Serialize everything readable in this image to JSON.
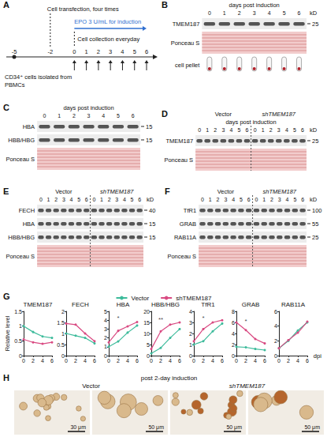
{
  "figure": {
    "panels": [
      {
        "letter": "A",
        "timeline": [
          -5,
          -2,
          0,
          1,
          2,
          3,
          4,
          5,
          6
        ],
        "isolation": "CD34⁺ cells isolated from PBMCs",
        "transfection": "Cell transfection, four times",
        "induction": "EPO 3 U/mL for induction",
        "collection": "Cell collection everyday"
      },
      {
        "letter": "B",
        "header": "days post induction",
        "unit": "kD",
        "lanes": [
          0,
          1,
          2,
          3,
          4,
          5,
          6
        ],
        "rows": [
          {
            "label": "TMEM187",
            "kd": 25,
            "kind": "band"
          },
          {
            "label": "Ponceau S",
            "kind": "ponceau"
          },
          {
            "label": "cell pellet",
            "kind": "pellet"
          }
        ]
      },
      {
        "letter": "C",
        "header": "days post induction",
        "lanes": [
          0,
          1,
          2,
          3,
          4,
          5,
          6
        ],
        "rows": [
          {
            "label": "HBA",
            "kd": 15,
            "kind": "band"
          },
          {
            "label": "HBB/HBG",
            "kd": 15,
            "kind": "band"
          },
          {
            "label": "Ponceau S",
            "kind": "ponceau"
          }
        ]
      },
      {
        "letter": "D",
        "groups": [
          "Vector",
          "shTMEM187"
        ],
        "header": "days post induction",
        "unit": "kD",
        "lanes": [
          0,
          1,
          2,
          3,
          4,
          5,
          6
        ],
        "rows": [
          {
            "label": "TMEM187",
            "kd": 25,
            "kind": "band"
          },
          {
            "label": "Ponceau S",
            "kind": "ponceau"
          }
        ]
      },
      {
        "letter": "E",
        "groups": [
          "Vector",
          "shTMEM187"
        ],
        "unit": "kD",
        "lanes": [
          0,
          1,
          2,
          3,
          4,
          5,
          6
        ],
        "rows": [
          {
            "label": "FECH",
            "kd": 40,
            "kind": "band"
          },
          {
            "label": "HBA",
            "kd": 15,
            "kind": "band"
          },
          {
            "label": "HBB/HBG",
            "kd": 15,
            "kind": "band"
          },
          {
            "label": "Ponceau S",
            "kind": "ponceau"
          }
        ]
      },
      {
        "letter": "F",
        "groups": [
          "Vector",
          "shTMEM187"
        ],
        "unit": "kD",
        "lanes": [
          0,
          1,
          2,
          3,
          4,
          5,
          6
        ],
        "rows": [
          {
            "label": "TfR1",
            "kd": 100,
            "kind": "band"
          },
          {
            "label": "GRAB",
            "kd": 55,
            "kind": "band"
          },
          {
            "label": "RAB11A",
            "kd": 25,
            "kind": "band"
          },
          {
            "label": "Ponceau S",
            "kind": "ponceau"
          }
        ]
      },
      {
        "letter": "G"
      },
      {
        "letter": "H",
        "header": "post 2-day induction",
        "groups": [
          "Vector",
          "shTMEM187"
        ],
        "scale_bars": [
          "30 μm",
          "50 μm",
          "50 μm",
          "50 μm"
        ]
      }
    ]
  },
  "chart_data": [
    {
      "type": "line",
      "title": "TMEM187",
      "ylabel": "Relative level",
      "legend": "top",
      "grid": false,
      "x": [
        0,
        2,
        4,
        6
      ],
      "xlim": [
        0,
        6
      ],
      "xticks": [
        0,
        2,
        4,
        6
      ],
      "ylim": [
        0,
        1.5
      ],
      "yticks": [
        0,
        0.5,
        1,
        1.5
      ],
      "series": [
        {
          "name": "Vector",
          "color": "#3dbb9b",
          "values": [
            1,
            0.8,
            0.65,
            0.6
          ]
        },
        {
          "name": "shTMEM187",
          "color": "#d94a82",
          "values": [
            0.55,
            0.45,
            0.4,
            0.45
          ]
        }
      ]
    },
    {
      "type": "line",
      "title": "FECH",
      "grid": false,
      "x": [
        0,
        2,
        4,
        6
      ],
      "xlim": [
        0,
        6
      ],
      "xticks": [
        0,
        2,
        4,
        6
      ],
      "ylim": [
        0,
        2
      ],
      "yticks": [
        0,
        0.5,
        1,
        1.5,
        2
      ],
      "series": [
        {
          "name": "Vector",
          "color": "#3dbb9b",
          "values": [
            1,
            0.9,
            0.8,
            0.55
          ]
        },
        {
          "name": "shTMEM187",
          "color": "#d94a82",
          "values": [
            1.45,
            1.4,
            1,
            0.65
          ]
        }
      ]
    },
    {
      "type": "line",
      "title": "HBA",
      "grid": false,
      "x": [
        0,
        2,
        4,
        6
      ],
      "xlim": [
        0,
        6
      ],
      "xticks": [
        0,
        2,
        4,
        6
      ],
      "ylim": [
        0,
        5
      ],
      "yticks": [
        0,
        1,
        2,
        3,
        4,
        5
      ],
      "series": [
        {
          "name": "Vector",
          "color": "#3dbb9b",
          "values": [
            1,
            1.6,
            2.6,
            3.4
          ]
        },
        {
          "name": "shTMEM187",
          "color": "#d94a82",
          "values": [
            1.5,
            2.8,
            3.3,
            3.8
          ]
        }
      ],
      "annotations": [
        {
          "x": 2,
          "y": 3.9,
          "text": "*"
        }
      ]
    },
    {
      "type": "line",
      "title": "HBB/HBG",
      "grid": false,
      "x": [
        0,
        2,
        4,
        6
      ],
      "xlim": [
        0,
        6
      ],
      "xticks": [
        0,
        2,
        4,
        6
      ],
      "ylim": [
        0,
        20
      ],
      "yticks": [
        0,
        5,
        10,
        15,
        20
      ],
      "series": [
        {
          "name": "Vector",
          "color": "#3dbb9b",
          "values": [
            1,
            3.5,
            8,
            12
          ]
        },
        {
          "name": "shTMEM187",
          "color": "#d94a82",
          "values": [
            3,
            11,
            14,
            15
          ]
        }
      ],
      "annotations": [
        {
          "x": 2,
          "y": 15,
          "text": "**"
        }
      ]
    },
    {
      "type": "line",
      "title": "TfR1",
      "grid": false,
      "x": [
        0,
        2,
        4,
        6
      ],
      "xlim": [
        0,
        6
      ],
      "xticks": [
        0,
        2,
        4,
        6
      ],
      "ylim": [
        0,
        4
      ],
      "yticks": [
        0,
        1,
        2,
        3,
        4
      ],
      "series": [
        {
          "name": "Vector",
          "color": "#3dbb9b",
          "values": [
            1,
            1.3,
            2.2,
            2.9
          ]
        },
        {
          "name": "shTMEM187",
          "color": "#d94a82",
          "values": [
            1.3,
            2.4,
            3,
            3.2
          ]
        }
      ],
      "annotations": [
        {
          "x": 2,
          "y": 3.1,
          "text": "*"
        }
      ]
    },
    {
      "type": "line",
      "title": "GRAB",
      "grid": false,
      "x": [
        0,
        2,
        4,
        6
      ],
      "xlim": [
        0,
        6
      ],
      "xticks": [
        0,
        2,
        4,
        6
      ],
      "ylim": [
        0,
        8
      ],
      "yticks": [
        0,
        2,
        4,
        6,
        8
      ],
      "series": [
        {
          "name": "Vector",
          "color": "#3dbb9b",
          "values": [
            1.6,
            1.5,
            1.2,
            1
          ]
        },
        {
          "name": "shTMEM187",
          "color": "#d94a82",
          "values": [
            6,
            4.6,
            3,
            2.2
          ]
        }
      ],
      "annotations": [
        {
          "x": 2,
          "y": 5.6,
          "text": "*"
        }
      ]
    },
    {
      "type": "line",
      "title": "RAB11A",
      "xlabel": "dpi",
      "grid": false,
      "x": [
        0,
        2,
        4,
        6
      ],
      "xlim": [
        0,
        6
      ],
      "xticks": [
        0,
        2,
        4,
        6
      ],
      "ylim": [
        0,
        6
      ],
      "yticks": [
        0,
        2,
        4,
        6
      ],
      "series": [
        {
          "name": "Vector",
          "color": "#3dbb9b",
          "values": [
            1,
            2,
            3.4,
            4.5
          ]
        },
        {
          "name": "shTMEM187",
          "color": "#d94a82",
          "values": [
            1,
            2.1,
            3.1,
            4.6
          ]
        }
      ]
    }
  ]
}
